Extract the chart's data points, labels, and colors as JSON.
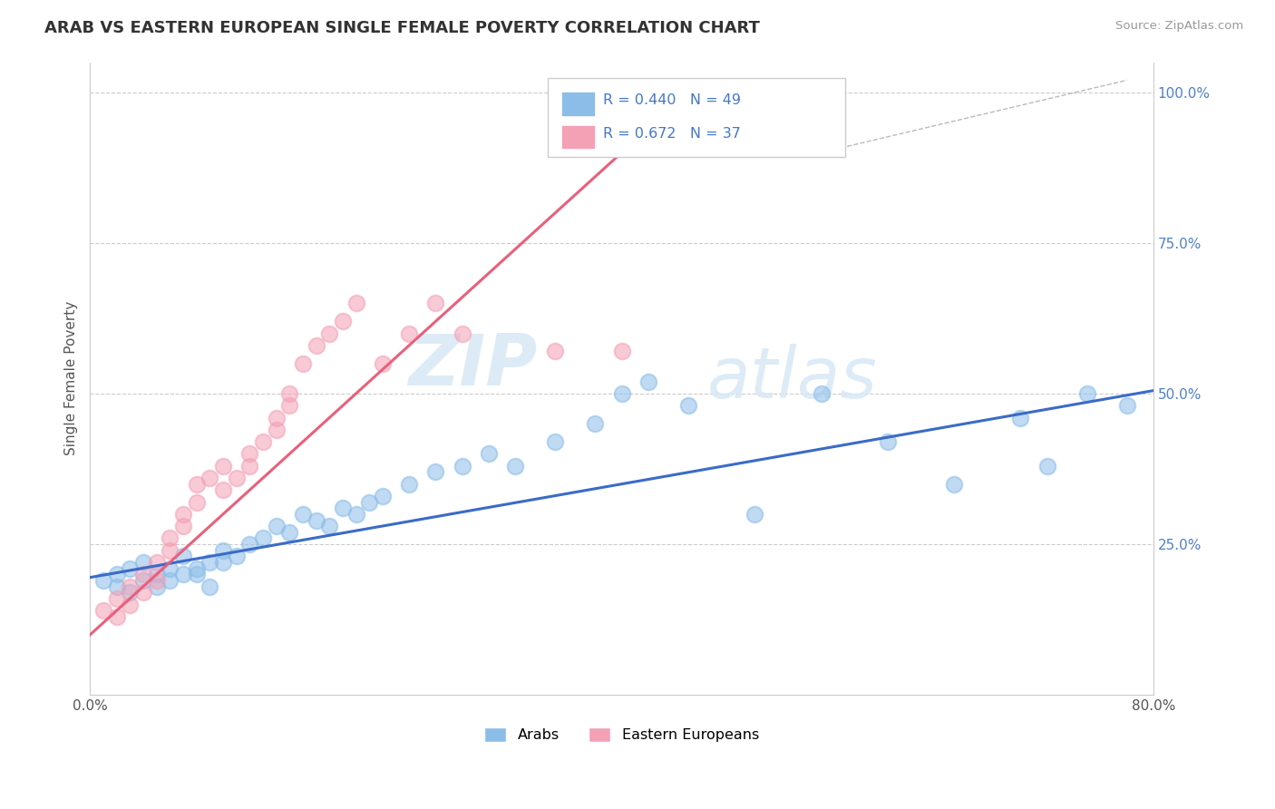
{
  "title": "ARAB VS EASTERN EUROPEAN SINGLE FEMALE POVERTY CORRELATION CHART",
  "source": "Source: ZipAtlas.com",
  "ylabel": "Single Female Poverty",
  "xlim": [
    0.0,
    0.8
  ],
  "ylim": [
    0.0,
    1.05
  ],
  "xticks": [
    0.0,
    0.2,
    0.4,
    0.6,
    0.8
  ],
  "xticklabels": [
    "0.0%",
    "",
    "",
    "",
    "80.0%"
  ],
  "ytick_vals": [
    0.25,
    0.5,
    0.75,
    1.0
  ],
  "yticklabels": [
    "25.0%",
    "50.0%",
    "75.0%",
    "100.0%"
  ],
  "legend_r1": "R = 0.440",
  "legend_n1": "N = 49",
  "legend_r2": "R = 0.672",
  "legend_n2": "N = 37",
  "legend_label1": "Arabs",
  "legend_label2": "Eastern Europeans",
  "color_arab": "#8BBDE8",
  "color_ee": "#F4A0B5",
  "line_color_arab": "#3B6BC8",
  "line_color_ee": "#E8607A",
  "watermark_zip": "ZIP",
  "watermark_atlas": "atlas",
  "arab_line_x": [
    0.0,
    0.8
  ],
  "arab_line_y": [
    0.195,
    0.505
  ],
  "ee_line_x": [
    0.0,
    0.45
  ],
  "ee_line_y": [
    0.1,
    1.0
  ],
  "arab_x": [
    0.01,
    0.02,
    0.02,
    0.03,
    0.03,
    0.04,
    0.04,
    0.05,
    0.05,
    0.06,
    0.06,
    0.07,
    0.07,
    0.08,
    0.08,
    0.09,
    0.09,
    0.1,
    0.1,
    0.11,
    0.12,
    0.13,
    0.14,
    0.15,
    0.16,
    0.17,
    0.18,
    0.19,
    0.2,
    0.21,
    0.22,
    0.24,
    0.26,
    0.28,
    0.3,
    0.32,
    0.35,
    0.38,
    0.4,
    0.42,
    0.45,
    0.5,
    0.55,
    0.6,
    0.65,
    0.7,
    0.72,
    0.75,
    0.78
  ],
  "arab_y": [
    0.19,
    0.18,
    0.2,
    0.17,
    0.21,
    0.19,
    0.22,
    0.18,
    0.2,
    0.19,
    0.21,
    0.2,
    0.23,
    0.21,
    0.2,
    0.22,
    0.18,
    0.24,
    0.22,
    0.23,
    0.25,
    0.26,
    0.28,
    0.27,
    0.3,
    0.29,
    0.28,
    0.31,
    0.3,
    0.32,
    0.33,
    0.35,
    0.37,
    0.38,
    0.4,
    0.38,
    0.42,
    0.45,
    0.5,
    0.52,
    0.48,
    0.3,
    0.5,
    0.42,
    0.35,
    0.46,
    0.38,
    0.5,
    0.48
  ],
  "ee_x": [
    0.01,
    0.02,
    0.02,
    0.03,
    0.03,
    0.04,
    0.04,
    0.05,
    0.05,
    0.06,
    0.06,
    0.07,
    0.07,
    0.08,
    0.08,
    0.09,
    0.1,
    0.1,
    0.11,
    0.12,
    0.12,
    0.13,
    0.14,
    0.14,
    0.15,
    0.15,
    0.16,
    0.17,
    0.18,
    0.19,
    0.2,
    0.22,
    0.24,
    0.26,
    0.28,
    0.35,
    0.4
  ],
  "ee_y": [
    0.14,
    0.16,
    0.13,
    0.18,
    0.15,
    0.17,
    0.2,
    0.19,
    0.22,
    0.24,
    0.26,
    0.28,
    0.3,
    0.32,
    0.35,
    0.36,
    0.38,
    0.34,
    0.36,
    0.38,
    0.4,
    0.42,
    0.44,
    0.46,
    0.48,
    0.5,
    0.55,
    0.58,
    0.6,
    0.62,
    0.65,
    0.55,
    0.6,
    0.65,
    0.6,
    0.57,
    0.57
  ]
}
